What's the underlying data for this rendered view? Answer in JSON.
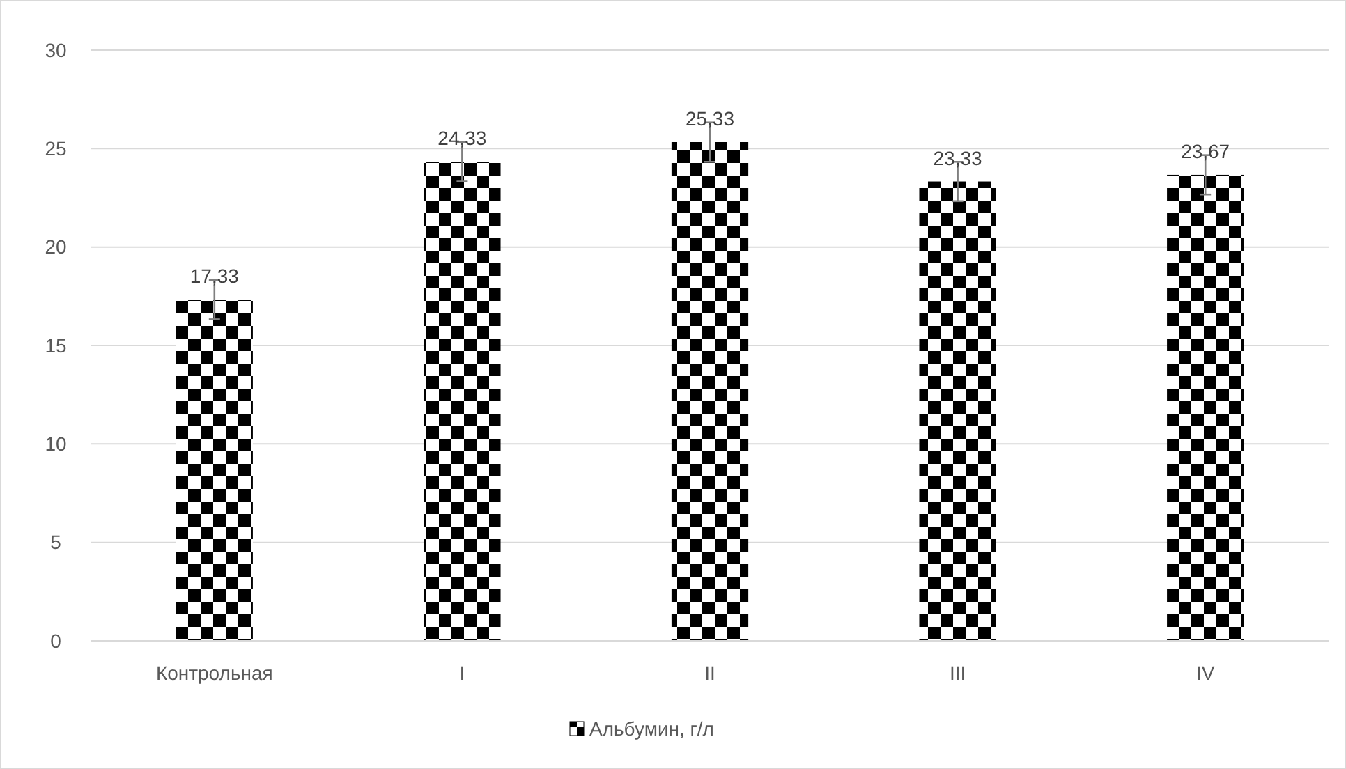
{
  "chart_data": {
    "type": "bar",
    "categories": [
      "Контрольная",
      "I",
      "II",
      "III",
      "IV"
    ],
    "series": [
      {
        "name": "Альбумин, г/л",
        "color": "#000000",
        "values": [
          17.33,
          24.33,
          25.33,
          23.33,
          23.67
        ],
        "errors": [
          1,
          1,
          1,
          1,
          1
        ],
        "value_labels": [
          "17,33",
          "24,33",
          "25,33",
          "23,33",
          "23,67"
        ]
      }
    ],
    "ylim": [
      0,
      30
    ],
    "yticks": [
      0,
      5,
      10,
      15,
      20,
      25,
      30
    ],
    "grid": "y",
    "legend": "bottom"
  }
}
